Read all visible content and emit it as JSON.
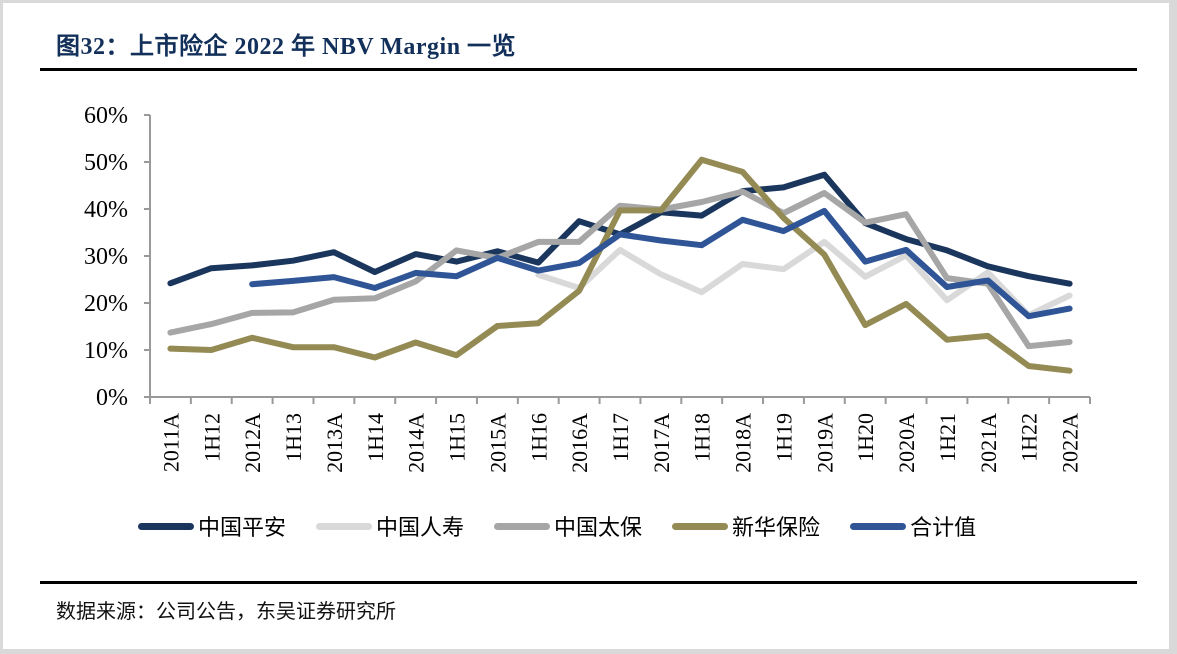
{
  "title": "图32：上市险企 2022 年 NBV Margin 一览",
  "source": "数据来源：公司公告，东吴证券研究所",
  "chart_data": {
    "type": "line",
    "title": "图32：上市险企 2022 年 NBV Margin 一览",
    "xlabel": "",
    "ylabel": "",
    "ylim": [
      0,
      60
    ],
    "yticks": [
      0,
      10,
      20,
      30,
      40,
      50,
      60
    ],
    "ytick_labels": [
      "0%",
      "10%",
      "20%",
      "30%",
      "40%",
      "50%",
      "60%"
    ],
    "grid": false,
    "legend_position": "bottom",
    "categories": [
      "2011A",
      "1H12",
      "2012A",
      "1H13",
      "2013A",
      "1H14",
      "2014A",
      "1H15",
      "2015A",
      "1H16",
      "2016A",
      "1H17",
      "2017A",
      "1H18",
      "2018A",
      "1H19",
      "2019A",
      "1H20",
      "2020A",
      "1H21",
      "2021A",
      "1H22",
      "2022A"
    ],
    "series": [
      {
        "name": "中国平安",
        "color": "#1b365d",
        "values": [
          24.2,
          27.4,
          28.0,
          29.0,
          30.8,
          26.6,
          30.4,
          28.8,
          31.0,
          28.6,
          37.4,
          34.6,
          39.3,
          38.6,
          43.8,
          44.6,
          47.3,
          37.0,
          33.6,
          31.2,
          27.8,
          25.7,
          24.1
        ]
      },
      {
        "name": "中国人寿",
        "color": "#d9d9d9",
        "values": [
          null,
          null,
          null,
          null,
          null,
          null,
          null,
          null,
          null,
          26.0,
          23.2,
          31.3,
          26.1,
          22.3,
          28.3,
          27.2,
          33.0,
          25.6,
          30.1,
          20.6,
          26.5,
          17.4,
          21.6
        ]
      },
      {
        "name": "中国太保",
        "color": "#a6a6a6",
        "values": [
          13.7,
          15.5,
          17.9,
          18.0,
          20.7,
          21.0,
          24.6,
          31.2,
          29.6,
          33.0,
          33.0,
          40.7,
          39.9,
          41.5,
          43.7,
          39.1,
          43.4,
          37.1,
          38.9,
          25.3,
          24.1,
          10.8,
          11.7
        ]
      },
      {
        "name": "新华保险",
        "color": "#948a54",
        "values": [
          10.3,
          10.0,
          12.6,
          10.6,
          10.6,
          8.4,
          11.6,
          8.9,
          15.1,
          15.7,
          22.6,
          39.7,
          39.7,
          50.5,
          47.9,
          38.1,
          30.3,
          15.3,
          19.8,
          12.2,
          13.0,
          6.6,
          5.6
        ]
      },
      {
        "name": "合计值",
        "color": "#2f5597",
        "values": [
          null,
          null,
          24.0,
          24.7,
          25.5,
          23.2,
          26.4,
          25.7,
          29.6,
          26.9,
          28.5,
          34.6,
          33.3,
          32.3,
          37.7,
          35.3,
          39.6,
          28.8,
          31.3,
          23.4,
          24.8,
          17.2,
          18.8
        ]
      }
    ]
  }
}
